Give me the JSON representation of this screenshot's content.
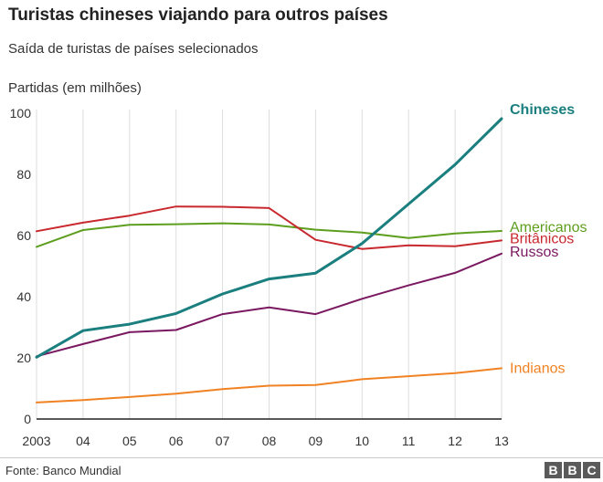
{
  "title": "Turistas chineses viajando para outros países",
  "subtitle": "Saída de turistas de países selecionados",
  "source": "Fonte: Banco Mundial",
  "logo": [
    "B",
    "B",
    "C"
  ],
  "chart_data": {
    "type": "line",
    "ylabel": "Partidas (em milhões)",
    "xlabel": "",
    "x": [
      2003,
      2004,
      2005,
      2006,
      2007,
      2008,
      2009,
      2010,
      2011,
      2012,
      2013
    ],
    "x_tick_labels": [
      "2003",
      "04",
      "05",
      "06",
      "07",
      "08",
      "09",
      "10",
      "11",
      "12",
      "13"
    ],
    "ylim": [
      0,
      100
    ],
    "y_ticks": [
      0,
      20,
      40,
      60,
      80,
      100
    ],
    "grid": "vertical",
    "legend": "direct labels at right end of lines",
    "series": [
      {
        "name": "Chineses",
        "color": "#1b7f7f",
        "bold": true,
        "values": [
          20.2,
          28.9,
          31.0,
          34.5,
          40.9,
          45.8,
          47.7,
          57.4,
          70.3,
          83.2,
          98.2
        ]
      },
      {
        "name": "Americanos",
        "color": "#5e9e1e",
        "bold": false,
        "values": [
          56.3,
          61.8,
          63.5,
          63.7,
          64.0,
          63.6,
          61.9,
          61.0,
          59.2,
          60.7,
          61.5
        ]
      },
      {
        "name": "Britânicos",
        "color": "#c8292f",
        "bold": false,
        "values": [
          61.4,
          64.2,
          66.5,
          69.5,
          69.4,
          69.0,
          58.6,
          55.6,
          56.8,
          56.5,
          58.4
        ]
      },
      {
        "name": "Russos",
        "color": "#7a1860",
        "bold": false,
        "values": [
          20.5,
          24.5,
          28.4,
          29.1,
          34.3,
          36.5,
          34.3,
          39.3,
          43.7,
          47.8,
          54.1
        ]
      },
      {
        "name": "Indianos",
        "color": "#f08223",
        "bold": false,
        "values": [
          5.4,
          6.2,
          7.2,
          8.3,
          9.8,
          10.9,
          11.1,
          13.0,
          14.0,
          15.0,
          16.6
        ]
      }
    ]
  }
}
